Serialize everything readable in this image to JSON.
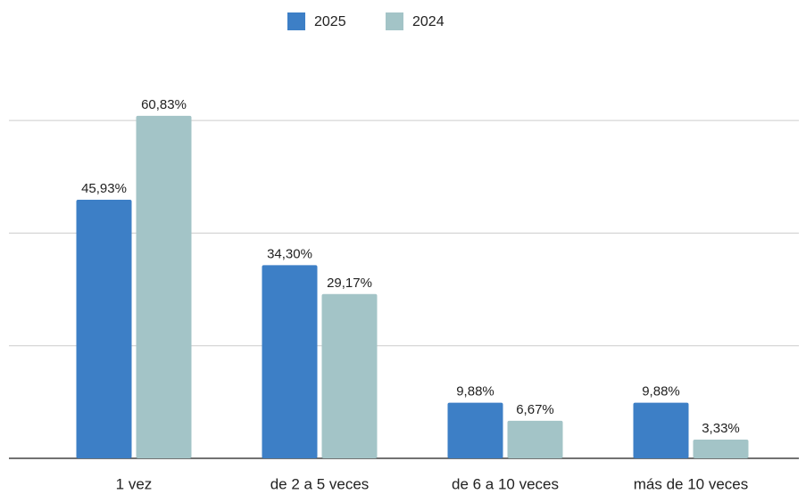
{
  "chart_data": {
    "type": "bar",
    "categories": [
      "1 vez",
      "de 2 a 5 veces",
      "de 6 a 10 veces",
      "más de 10 veces"
    ],
    "series": [
      {
        "name": "2025",
        "color": "#3d7fc6",
        "values": [
          45.93,
          34.3,
          9.88,
          9.88
        ],
        "value_labels": [
          "45,93%",
          "34,30%",
          "9,88%",
          "9,88%"
        ]
      },
      {
        "name": "2024",
        "color": "#a3c4c7",
        "values": [
          60.83,
          29.17,
          6.67,
          3.33
        ],
        "value_labels": [
          "60,83%",
          "29,17%",
          "6,67%",
          "3,33%"
        ]
      }
    ],
    "ylim": [
      0,
      70
    ],
    "yticks": [
      0,
      20,
      40,
      60
    ],
    "grid": true,
    "legend": "top"
  }
}
